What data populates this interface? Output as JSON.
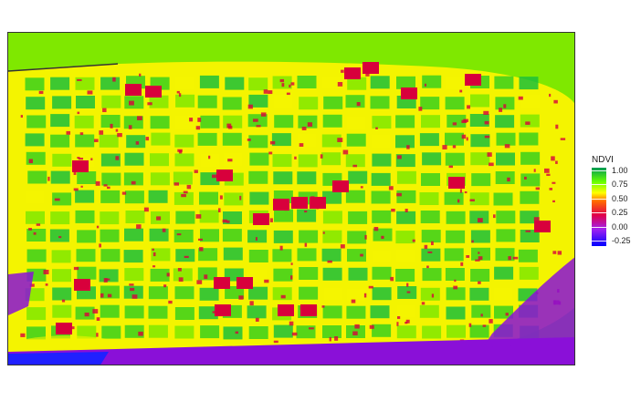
{
  "legend": {
    "title": "NDVI",
    "ticks": [
      "1.00",
      "0.75",
      "0.50",
      "0.25",
      "0.00",
      "-0.25"
    ],
    "min": -0.35,
    "max": 1.05,
    "colors": [
      {
        "v": -0.35,
        "c": "#0000ff"
      },
      {
        "v": -0.05,
        "c": "#a020f0"
      },
      {
        "v": 0.2,
        "c": "#e0004a"
      },
      {
        "v": 0.45,
        "c": "#ff6a00"
      },
      {
        "v": 0.6,
        "c": "#ffff00"
      },
      {
        "v": 0.8,
        "c": "#66ff00"
      },
      {
        "v": 1.05,
        "c": "#009955"
      }
    ]
  },
  "map": {
    "layer": "ndvi-raster",
    "colors": {
      "background": "#7fe800",
      "soil": "#f4f400",
      "plot_green": "#39d01c",
      "plot_lush": "#1cbf3a",
      "stress_red": "#d8003c",
      "water_blue": "#2020ff",
      "water_purple": "#8a10d8"
    }
  }
}
